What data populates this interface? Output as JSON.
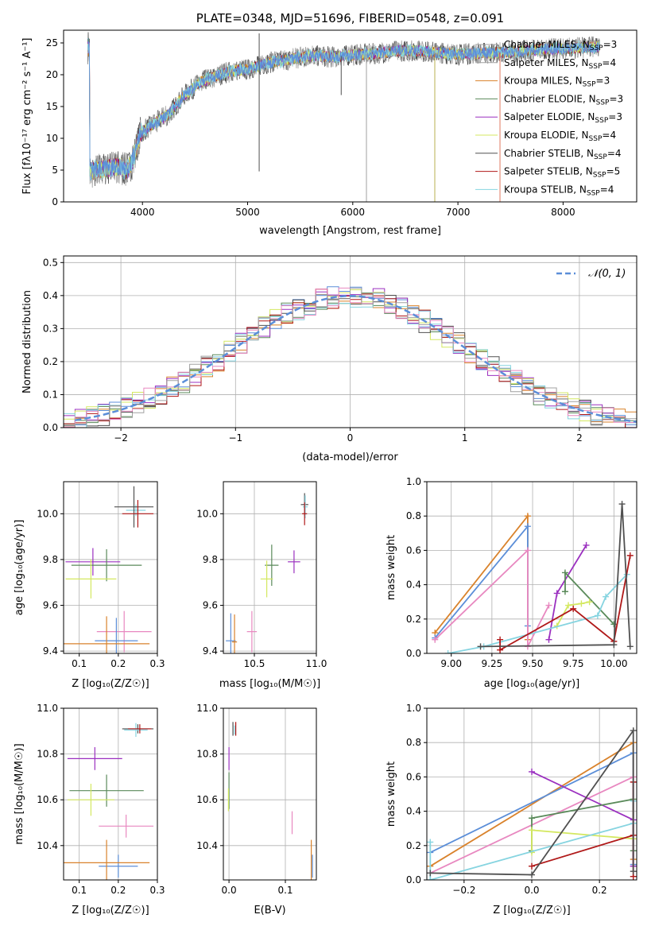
{
  "colors": {
    "grid": "#b0b0b0",
    "c1": "#5b8ed8",
    "c2": "#a0a0a0",
    "c3": "#d9822b",
    "c4": "#5a8a5a",
    "c5": "#9b30c0",
    "c6": "#d4e860",
    "c7": "#505050",
    "c8": "#b01818",
    "c9": "#86d4e0",
    "c10": "#e888c0"
  },
  "chart_data": [
    {
      "type": "line",
      "title": "PLATE=0348, MJD=51696, FIBERID=0548, z=0.091",
      "xlabel": "wavelength [Angstrom, rest frame]",
      "ylabel": "Flux [fλ10⁻¹⁷ erg cm⁻² s⁻¹ A⁻¹]",
      "xlim": [
        3250,
        8700
      ],
      "ylim": [
        0,
        27
      ],
      "xticks": [
        4000,
        5000,
        6000,
        7000,
        8000
      ],
      "yticks": [
        0,
        5,
        10,
        15,
        20,
        25
      ],
      "grid": false,
      "legend_position": "top-right",
      "continuum": [
        [
          3500,
          4.8
        ],
        [
          3650,
          5.2
        ],
        [
          3780,
          5.6
        ],
        [
          3850,
          4.9
        ],
        [
          3900,
          6.2
        ],
        [
          3980,
          10.8
        ],
        [
          4100,
          12.2
        ],
        [
          4250,
          13.8
        ],
        [
          4400,
          16.8
        ],
        [
          4550,
          18.8
        ],
        [
          4700,
          19.8
        ],
        [
          4850,
          20.6
        ],
        [
          5000,
          20.8
        ],
        [
          5200,
          21.9
        ],
        [
          5400,
          22.4
        ],
        [
          5600,
          23.0
        ],
        [
          5800,
          22.8
        ],
        [
          6000,
          23.1
        ],
        [
          6200,
          23.3
        ],
        [
          6400,
          23.7
        ],
        [
          6600,
          23.8
        ],
        [
          6800,
          23.5
        ],
        [
          7000,
          23.2
        ],
        [
          7200,
          23.4
        ],
        [
          7400,
          23.5
        ],
        [
          7600,
          23.7
        ],
        [
          7800,
          24.0
        ],
        [
          8000,
          24.1
        ],
        [
          8200,
          24.3
        ],
        [
          8350,
          24.4
        ]
      ],
      "features": [
        [
          5110,
          26.5
        ],
        [
          5110,
          4.8
        ],
        [
          5890,
          16.8
        ],
        [
          6130,
          0
        ],
        [
          6780,
          0
        ],
        [
          7400,
          0
        ]
      ],
      "series": [
        {
          "name": "Chabrier MILES, N",
          "suffix": "=3",
          "color_key": "c2"
        },
        {
          "name": "Salpeter MILES, N",
          "suffix": "=4",
          "color_key": "c2"
        },
        {
          "name": "Kroupa MILES, N",
          "suffix": "=3",
          "color_key": "c3"
        },
        {
          "name": "Chabrier ELODIE, N",
          "suffix": "=3",
          "color_key": "c4"
        },
        {
          "name": "Salpeter ELODIE, N",
          "suffix": "=3",
          "color_key": "c5"
        },
        {
          "name": "Kroupa ELODIE, N",
          "suffix": "=4",
          "color_key": "c6"
        },
        {
          "name": "Chabrier STELIB, N",
          "suffix": "=4",
          "color_key": "c7"
        },
        {
          "name": "Salpeter STELIB, N",
          "suffix": "=5",
          "color_key": "c8"
        },
        {
          "name": "Kroupa STELIB, N",
          "suffix": "=4",
          "color_key": "c9"
        }
      ],
      "legend_subscript": "SSP"
    },
    {
      "type": "line",
      "xlabel": "(data-model)/error",
      "ylabel": "Normed distribution",
      "xlim": [
        -2.5,
        2.5
      ],
      "ylim": [
        0,
        0.52
      ],
      "xticks": [
        -2,
        -1,
        0,
        1,
        2
      ],
      "yticks": [
        0.0,
        0.1,
        0.2,
        0.3,
        0.4,
        0.5
      ],
      "grid": true,
      "legend": "𝒩(0, 1)",
      "legend_position": "top-right",
      "histogram_bin_width": 0.1
    },
    {
      "type": "scatter",
      "xlabel": "Z [log₁₀(Z/Z☉)]",
      "ylabel": "age  [log₁₀(age/yr)]",
      "xlim": [
        0.06,
        0.3
      ],
      "ylim": [
        9.39,
        10.14
      ],
      "xticks": [
        0.1,
        0.2,
        0.3
      ],
      "yticks": [
        9.4,
        9.6,
        9.8,
        10.0
      ],
      "grid": true,
      "points": [
        {
          "x": 0.245,
          "y": 10.015,
          "xerr": 0.025,
          "yerr": 0.025,
          "color_key": "c9"
        },
        {
          "x": 0.24,
          "y": 10.03,
          "xerr": 0.05,
          "yerr": 0.09,
          "color_key": "c7"
        },
        {
          "x": 0.25,
          "y": 10.0,
          "xerr": 0.04,
          "yerr": 0.06,
          "color_key": "c8"
        },
        {
          "x": 0.135,
          "y": 9.79,
          "xerr": 0.07,
          "yerr": 0.06,
          "color_key": "c5"
        },
        {
          "x": 0.17,
          "y": 9.775,
          "xerr": 0.09,
          "yerr": 0.07,
          "color_key": "c4"
        },
        {
          "x": 0.13,
          "y": 9.715,
          "xerr": 0.065,
          "yerr": 0.085,
          "color_key": "c6"
        },
        {
          "x": 0.215,
          "y": 9.485,
          "xerr": 0.07,
          "yerr": 0.09,
          "color_key": "c10"
        },
        {
          "x": 0.195,
          "y": 9.445,
          "xerr": 0.055,
          "yerr": 0.1,
          "color_key": "c1"
        },
        {
          "x": 0.17,
          "y": 9.432,
          "xerr": 0.11,
          "yerr": 0.12,
          "color_key": "c3"
        }
      ]
    },
    {
      "type": "scatter",
      "xlabel": "mass [log₁₀(M/M☉)]",
      "ylabel": "",
      "xlim": [
        10.25,
        11.0
      ],
      "ylim": [
        9.39,
        10.14
      ],
      "xticks": [
        10.5,
        11.0
      ],
      "yticks": [
        9.4,
        9.6,
        9.8,
        10.0
      ],
      "grid": true,
      "points": [
        {
          "x": 10.905,
          "y": 10.04,
          "xerr": 0.03,
          "yerr": 0.05,
          "color_key": "c7"
        },
        {
          "x": 10.91,
          "y": 10.03,
          "xerr": 0.02,
          "yerr": 0.05,
          "color_key": "c9"
        },
        {
          "x": 10.905,
          "y": 10.0,
          "xerr": 0.02,
          "yerr": 0.05,
          "color_key": "c8"
        },
        {
          "x": 10.82,
          "y": 9.79,
          "xerr": 0.05,
          "yerr": 0.05,
          "color_key": "c5"
        },
        {
          "x": 10.64,
          "y": 9.775,
          "xerr": 0.055,
          "yerr": 0.09,
          "color_key": "c4"
        },
        {
          "x": 10.6,
          "y": 9.715,
          "xerr": 0.05,
          "yerr": 0.08,
          "color_key": "c6"
        },
        {
          "x": 10.48,
          "y": 9.485,
          "xerr": 0.04,
          "yerr": 0.09,
          "color_key": "c10"
        },
        {
          "x": 10.31,
          "y": 9.445,
          "xerr": 0.04,
          "yerr": 0.12,
          "color_key": "c1"
        },
        {
          "x": 10.34,
          "y": 9.44,
          "xerr": 0.02,
          "yerr": 0.12,
          "color_key": "c3"
        }
      ]
    },
    {
      "type": "line",
      "xlabel": "age  [log₁₀(age/yr)]",
      "ylabel": "mass weight",
      "xlim": [
        8.85,
        10.14
      ],
      "ylim": [
        0,
        1
      ],
      "xticks": [
        9.0,
        9.25,
        9.5,
        9.75,
        10.0
      ],
      "xticklabels": [
        "9.00",
        "9.25",
        "9.50",
        "9.75",
        "10.00"
      ],
      "yticks": [
        0.0,
        0.2,
        0.4,
        0.6,
        0.8,
        1.0
      ],
      "grid": true,
      "series": [
        {
          "color_key": "c3",
          "x": [
            8.9,
            9.47,
            9.47
          ],
          "y": [
            0.12,
            0.8,
            0.08
          ]
        },
        {
          "color_key": "c1",
          "x": [
            8.9,
            9.47,
            9.47
          ],
          "y": [
            0.09,
            0.74,
            0.16
          ]
        },
        {
          "color_key": "c10",
          "x": [
            8.9,
            9.47,
            9.47,
            9.6
          ],
          "y": [
            0.08,
            0.6,
            0.04,
            0.28
          ]
        },
        {
          "color_key": "c5",
          "x": [
            9.6,
            9.65,
            9.83
          ],
          "y": [
            0.08,
            0.35,
            0.63
          ]
        },
        {
          "color_key": "c4",
          "x": [
            9.7,
            9.7,
            10.0
          ],
          "y": [
            0.36,
            0.47,
            0.17
          ]
        },
        {
          "color_key": "c6",
          "x": [
            9.65,
            9.72,
            9.8,
            9.85
          ],
          "y": [
            0.16,
            0.28,
            0.29,
            0.3
          ]
        },
        {
          "color_key": "c9",
          "x": [
            8.98,
            9.2,
            9.9,
            9.95,
            10.08
          ],
          "y": [
            0.0,
            0.04,
            0.22,
            0.33,
            0.46
          ]
        },
        {
          "color_key": "c8",
          "x": [
            9.3,
            9.3,
            9.75,
            10.0,
            10.1
          ],
          "y": [
            0.08,
            0.02,
            0.26,
            0.07,
            0.57
          ]
        },
        {
          "color_key": "c7",
          "x": [
            9.18,
            10.0,
            10.05,
            10.1
          ],
          "y": [
            0.04,
            0.05,
            0.87,
            0.04
          ]
        }
      ]
    },
    {
      "type": "scatter",
      "xlabel": "Z [log₁₀(Z/Z☉)]",
      "ylabel": "mass [log₁₀(M/M☉)]",
      "xlim": [
        0.06,
        0.3
      ],
      "ylim": [
        10.25,
        11.0
      ],
      "xticks": [
        0.1,
        0.2,
        0.3
      ],
      "yticks": [
        10.4,
        10.6,
        10.8,
        11.0
      ],
      "grid": true,
      "points": [
        {
          "x": 0.25,
          "y": 10.91,
          "xerr": 0.04,
          "yerr": 0.02,
          "color_key": "c7"
        },
        {
          "x": 0.245,
          "y": 10.905,
          "xerr": 0.03,
          "yerr": 0.03,
          "color_key": "c9"
        },
        {
          "x": 0.255,
          "y": 10.91,
          "xerr": 0.03,
          "yerr": 0.02,
          "color_key": "c8"
        },
        {
          "x": 0.14,
          "y": 10.78,
          "xerr": 0.07,
          "yerr": 0.05,
          "color_key": "c5"
        },
        {
          "x": 0.17,
          "y": 10.64,
          "xerr": 0.095,
          "yerr": 0.07,
          "color_key": "c4"
        },
        {
          "x": 0.13,
          "y": 10.6,
          "xerr": 0.06,
          "yerr": 0.07,
          "color_key": "c6"
        },
        {
          "x": 0.22,
          "y": 10.485,
          "xerr": 0.07,
          "yerr": 0.05,
          "color_key": "c10"
        },
        {
          "x": 0.2,
          "y": 10.31,
          "xerr": 0.05,
          "yerr": 0.05,
          "color_key": "c1"
        },
        {
          "x": 0.17,
          "y": 10.325,
          "xerr": 0.11,
          "yerr": 0.1,
          "color_key": "c3"
        }
      ]
    },
    {
      "type": "scatter",
      "xlabel": "E(B-V)",
      "ylabel": "",
      "xlim": [
        -0.01,
        0.155
      ],
      "ylim": [
        10.25,
        11.0
      ],
      "xticks": [
        0.0,
        0.1
      ],
      "yticks": [
        10.4,
        10.6,
        10.8,
        11.0
      ],
      "grid": true,
      "points": [
        {
          "x": 0.012,
          "y": 10.91,
          "xerr": 0,
          "yerr": 0.03,
          "color_key": "c8"
        },
        {
          "x": 0.01,
          "y": 10.905,
          "xerr": 0,
          "yerr": 0.02,
          "color_key": "c9"
        },
        {
          "x": 0.007,
          "y": 10.91,
          "xerr": 0,
          "yerr": 0.03,
          "color_key": "c7"
        },
        {
          "x": 0.0,
          "y": 10.78,
          "xerr": 0,
          "yerr": 0.05,
          "color_key": "c5"
        },
        {
          "x": 0.0,
          "y": 10.64,
          "xerr": 0,
          "yerr": 0.08,
          "color_key": "c4"
        },
        {
          "x": -0.001,
          "y": 10.6,
          "xerr": 0,
          "yerr": 0.05,
          "color_key": "c6"
        },
        {
          "x": 0.112,
          "y": 10.5,
          "xerr": 0,
          "yerr": 0.05,
          "color_key": "c10"
        },
        {
          "x": 0.148,
          "y": 10.31,
          "xerr": 0,
          "yerr": 0.05,
          "color_key": "c1"
        },
        {
          "x": 0.146,
          "y": 10.325,
          "xerr": 0,
          "yerr": 0.1,
          "color_key": "c3"
        }
      ]
    },
    {
      "type": "line",
      "xlabel": "Z [log₁₀(Z/Z☉)]",
      "ylabel": "mass weight",
      "xlim": [
        -0.31,
        0.31
      ],
      "ylim": [
        0,
        1
      ],
      "xticks": [
        -0.2,
        0.0,
        0.2
      ],
      "yticks": [
        0.0,
        0.2,
        0.4,
        0.6,
        0.8,
        1.0
      ],
      "grid": true,
      "series": [
        {
          "color_key": "c3",
          "x": [
            -0.3,
            0.3,
            0.3
          ],
          "y": [
            0.08,
            0.8,
            0.12
          ]
        },
        {
          "color_key": "c1",
          "x": [
            -0.3,
            0.3,
            0.3
          ],
          "y": [
            0.16,
            0.74,
            0.09
          ]
        },
        {
          "color_key": "c10",
          "x": [
            -0.3,
            0.3,
            0.3
          ],
          "y": [
            0.04,
            0.6,
            0.08
          ]
        },
        {
          "color_key": "c5",
          "x": [
            0.0,
            0.3,
            0.3
          ],
          "y": [
            0.63,
            0.35,
            0.08
          ]
        },
        {
          "color_key": "c4",
          "x": [
            0.0,
            0.0,
            0.3,
            0.3
          ],
          "y": [
            0.17,
            0.36,
            0.47,
            0.17
          ]
        },
        {
          "color_key": "c6",
          "x": [
            0.0,
            0.0,
            0.3
          ],
          "y": [
            0.16,
            0.29,
            0.24
          ]
        },
        {
          "color_key": "c9",
          "x": [
            -0.3,
            -0.3,
            0.3,
            0.3
          ],
          "y": [
            0.22,
            0.0,
            0.33,
            0.46
          ]
        },
        {
          "color_key": "c8",
          "x": [
            0.0,
            0.3,
            0.3,
            0.3
          ],
          "y": [
            0.08,
            0.26,
            0.57,
            0.02
          ]
        },
        {
          "color_key": "c7",
          "x": [
            -0.3,
            0.0,
            0.3,
            0.3
          ],
          "y": [
            0.04,
            0.03,
            0.87,
            0.05
          ]
        }
      ]
    }
  ]
}
